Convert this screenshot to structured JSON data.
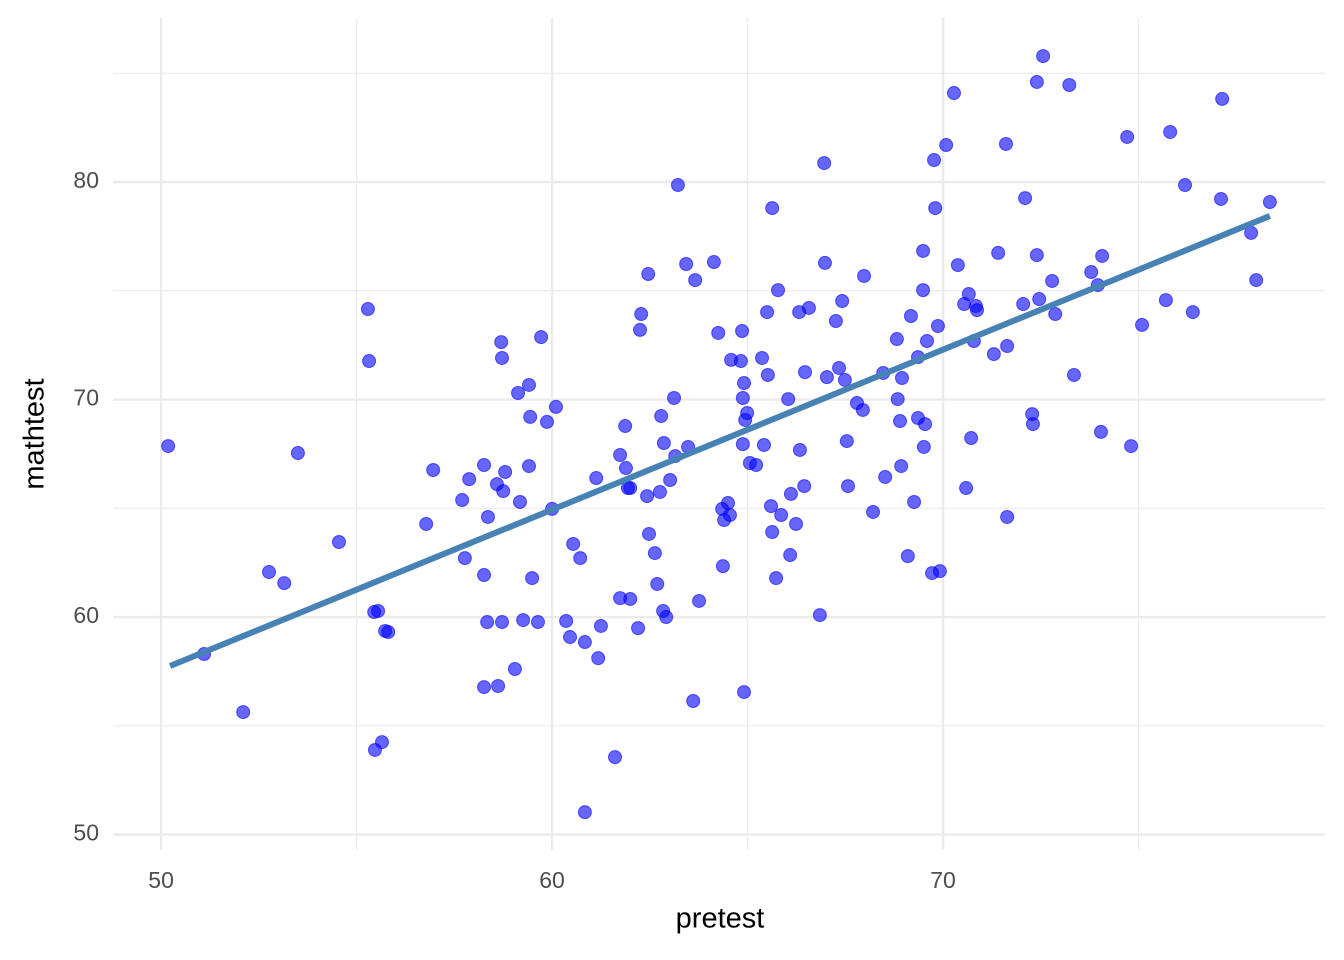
{
  "chart_data": {
    "type": "scatter",
    "x_label": "pretest",
    "y_label": "mathtest",
    "xlim": [
      48.77,
      79.77
    ],
    "ylim": [
      49.29,
      87.54
    ],
    "xticks": [
      50,
      60,
      70
    ],
    "yticks": [
      50,
      60,
      70,
      80
    ],
    "x_minor_grid": [
      55,
      65,
      75
    ],
    "y_minor_grid": [
      55,
      65,
      75,
      85
    ],
    "grid": true,
    "color": "#0000ff",
    "opacity": 0.6,
    "x": [
      50.18,
      51.1,
      52.1,
      52.76,
      53.15,
      53.5,
      54.55,
      55.29,
      55.32,
      55.45,
      55.55,
      55.47,
      55.65,
      55.73,
      55.81,
      56.78,
      56.96,
      57.7,
      57.77,
      57.88,
      58.26,
      58.26,
      58.26,
      58.34,
      58.36,
      58.59,
      58.62,
      58.7,
      58.72,
      58.72,
      58.75,
      58.8,
      59.05,
      59.13,
      59.18,
      59.26,
      59.41,
      59.44,
      59.41,
      59.49,
      59.64,
      59.72,
      59.87,
      60.1,
      60.0,
      60.36,
      60.46,
      60.54,
      60.72,
      60.84,
      60.84,
      61.13,
      61.18,
      61.25,
      61.61,
      61.74,
      61.74,
      61.87,
      61.89,
      61.94,
      62.0,
      62.0,
      62.2,
      62.25,
      62.28,
      62.43,
      62.46,
      62.48,
      62.63,
      62.69,
      62.76,
      62.79,
      62.84,
      62.86,
      62.92,
      63.02,
      63.12,
      63.15,
      63.22,
      63.43,
      63.48,
      63.61,
      63.66,
      63.76,
      64.14,
      64.25,
      64.35,
      64.37,
      64.4,
      64.5,
      64.55,
      64.58,
      64.83,
      64.86,
      64.88,
      64.91,
      64.88,
      64.91,
      64.94,
      64.99,
      65.06,
      65.22,
      65.37,
      65.42,
      65.5,
      65.52,
      65.6,
      65.63,
      65.63,
      65.73,
      65.78,
      65.86,
      66.04,
      66.09,
      66.11,
      66.24,
      66.32,
      66.34,
      66.45,
      66.47,
      66.57,
      66.85,
      66.96,
      66.98,
      67.03,
      67.26,
      67.34,
      67.42,
      67.49,
      67.54,
      67.57,
      67.8,
      67.95,
      67.98,
      68.21,
      68.47,
      68.52,
      68.82,
      68.84,
      68.9,
      68.95,
      68.93,
      69.1,
      69.18,
      69.26,
      69.36,
      69.36,
      69.49,
      69.49,
      69.54,
      69.51,
      69.59,
      69.72,
      69.77,
      69.8,
      69.87,
      69.92,
      70.08,
      70.28,
      70.38,
      70.54,
      70.59,
      70.66,
      70.72,
      70.79,
      70.84,
      70.87,
      71.3,
      71.41,
      71.61,
      71.64,
      71.64,
      72.05,
      72.1,
      72.28,
      72.3,
      72.4,
      72.4,
      72.46,
      72.56,
      72.79,
      72.87,
      73.23,
      73.35,
      73.79,
      73.96,
      74.04,
      74.07,
      74.71,
      74.81,
      75.09,
      75.7,
      75.81,
      76.19,
      76.39,
      77.11,
      77.14,
      77.88,
      78.01,
      78.36
    ],
    "y": [
      67.86,
      58.3,
      55.63,
      62.07,
      61.56,
      67.54,
      63.45,
      74.16,
      71.77,
      60.23,
      60.28,
      53.89,
      54.25,
      59.36,
      59.31,
      64.28,
      66.76,
      65.38,
      62.71,
      66.34,
      66.99,
      61.93,
      56.78,
      59.77,
      64.6,
      66.11,
      56.83,
      72.64,
      71.91,
      59.77,
      65.79,
      66.67,
      57.61,
      70.3,
      65.29,
      59.86,
      70.67,
      69.2,
      66.94,
      61.79,
      59.77,
      72.87,
      68.97,
      69.66,
      64.97,
      59.82,
      59.08,
      63.36,
      62.71,
      58.85,
      51.03,
      66.39,
      58.11,
      59.59,
      53.56,
      67.45,
      60.87,
      68.78,
      66.85,
      65.93,
      65.93,
      60.83,
      59.49,
      73.2,
      73.93,
      65.56,
      75.77,
      63.82,
      62.94,
      61.52,
      65.75,
      69.24,
      60.28,
      68.0,
      60.0,
      66.3,
      70.07,
      67.4,
      79.86,
      76.23,
      67.82,
      56.14,
      75.49,
      60.74,
      76.32,
      73.06,
      64.97,
      62.34,
      64.46,
      65.24,
      64.69,
      71.82,
      71.77,
      73.15,
      70.07,
      70.76,
      67.95,
      56.55,
      69.06,
      69.38,
      67.08,
      66.99,
      71.91,
      67.91,
      74.02,
      71.13,
      65.1,
      63.91,
      78.8,
      61.79,
      75.03,
      64.69,
      70.02,
      62.85,
      65.66,
      64.28,
      74.02,
      67.68,
      66.02,
      71.26,
      74.21,
      60.09,
      80.87,
      76.28,
      71.03,
      73.61,
      71.45,
      74.53,
      70.9,
      68.09,
      66.02,
      69.84,
      69.52,
      75.68,
      64.83,
      71.22,
      66.44,
      72.78,
      70.02,
      69.01,
      70.99,
      66.94,
      62.8,
      73.84,
      65.29,
      71.95,
      69.15,
      75.03,
      76.83,
      68.87,
      67.82,
      72.69,
      62.02,
      81.01,
      78.8,
      73.38,
      62.11,
      81.7,
      84.09,
      76.18,
      74.39,
      65.93,
      74.85,
      68.23,
      72.69,
      74.3,
      74.11,
      72.09,
      76.74,
      81.75,
      72.46,
      64.6,
      74.39,
      79.26,
      69.33,
      68.87,
      84.6,
      76.64,
      74.62,
      85.79,
      75.45,
      73.93,
      84.46,
      71.13,
      75.86,
      75.26,
      68.51,
      76.6,
      82.07,
      67.86,
      73.43,
      74.57,
      82.3,
      79.86,
      74.02,
      79.22,
      83.82,
      77.66,
      75.49,
      79.08
    ],
    "fit": {
      "x": [
        50.23,
        78.36
      ],
      "y": [
        57.75,
        78.44
      ],
      "color": "#4682b4"
    }
  }
}
